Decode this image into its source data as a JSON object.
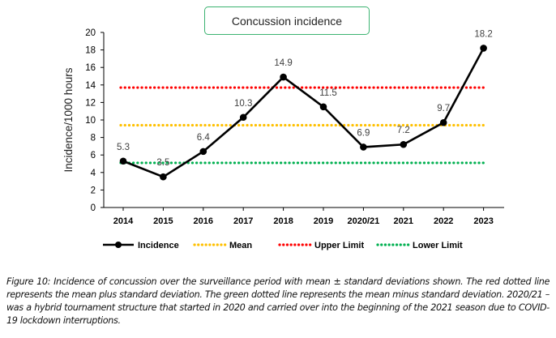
{
  "chart_data": {
    "type": "line",
    "title": "Concussion incidence",
    "xlabel": "",
    "ylabel": "Incidence/1000 hours",
    "ylim": [
      0,
      20
    ],
    "yticks": [
      0,
      2,
      4,
      6,
      8,
      10,
      12,
      14,
      16,
      18,
      20
    ],
    "categories": [
      "2014",
      "2015",
      "2016",
      "2017",
      "2018",
      "2019",
      "2020/21",
      "2021",
      "2022",
      "2023"
    ],
    "series": [
      {
        "name": "Incidence",
        "values": [
          5.3,
          3.5,
          6.4,
          10.3,
          14.9,
          11.5,
          6.9,
          7.2,
          9.7,
          18.2
        ],
        "color": "#000000",
        "style": "solid-markers",
        "data_labels": [
          "5.3",
          "3.5",
          "6.4",
          "10.3",
          "14.9",
          "11.5",
          "6.9",
          "7.2",
          "9.7",
          "18.2"
        ]
      },
      {
        "name": "Mean",
        "value": 9.4,
        "color": "#ffc000",
        "style": "dotted"
      },
      {
        "name": "Upper Limit",
        "value": 13.7,
        "color": "#ff0000",
        "style": "dotted"
      },
      {
        "name": "Lower Limit",
        "value": 5.1,
        "color": "#00b050",
        "style": "dotted"
      }
    ],
    "legend_position": "bottom",
    "grid": false
  },
  "caption": "Figure 10: Incidence of concussion over the surveillance period with mean ± standard deviations shown. The red dotted line represents the mean plus standard deviation. The green dotted line represents the mean minus standard deviation. 2020/21 – was a hybrid tournament structure that started in 2020 and carried over into the beginning of the 2021 season due to COVID-19 lockdown interruptions."
}
